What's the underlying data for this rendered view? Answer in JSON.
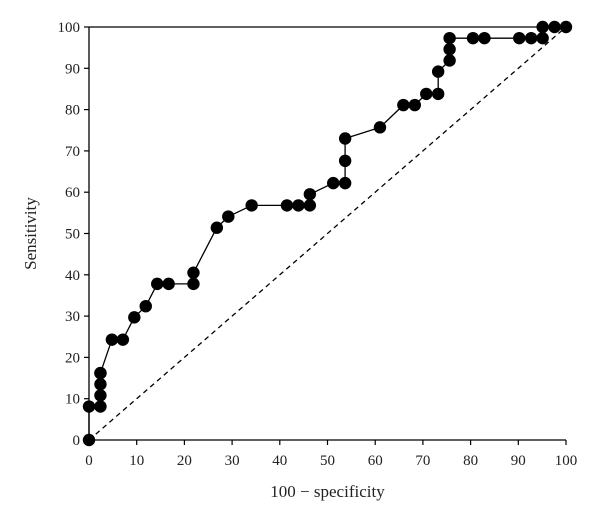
{
  "chart_data": {
    "type": "line",
    "title": "",
    "xlabel": "100 − specificity",
    "ylabel": "Sensitivity",
    "xlim": [
      0,
      100
    ],
    "ylim": [
      0,
      100
    ],
    "xticks": [
      0,
      10,
      20,
      30,
      40,
      50,
      60,
      70,
      80,
      90,
      100
    ],
    "yticks": [
      0,
      10,
      20,
      30,
      40,
      50,
      60,
      70,
      80,
      90,
      100
    ],
    "grid": false,
    "legend": "none",
    "colors": {
      "curve": "#000000",
      "marker": "#000000",
      "reference": "#000000",
      "axis": "#000000"
    },
    "series": [
      {
        "style": "solid-line-with-filled-circles",
        "x": [
          0,
          0,
          2.4,
          2.4,
          2.4,
          2.4,
          2.4,
          4.8,
          7.1,
          9.5,
          11.9,
          14.3,
          16.7,
          21.9,
          21.9,
          26.8,
          29.2,
          34.1,
          41.5,
          43.9,
          46.3,
          46.3,
          51.2,
          53.7,
          53.7,
          53.7,
          61.0,
          65.9,
          68.3,
          70.7,
          73.2,
          73.2,
          75.6,
          75.6,
          75.6,
          80.5,
          82.9,
          90.2,
          92.7,
          95.1,
          95.1,
          97.6,
          100
        ],
        "y": [
          0,
          8.1,
          8.1,
          10.8,
          13.5,
          16.2,
          16.2,
          24.3,
          24.3,
          29.7,
          32.4,
          37.8,
          37.8,
          37.8,
          40.5,
          51.4,
          54.1,
          56.8,
          56.8,
          56.8,
          56.8,
          59.5,
          62.2,
          62.2,
          67.6,
          73.0,
          75.7,
          81.1,
          81.1,
          83.8,
          83.8,
          89.2,
          91.9,
          94.6,
          97.3,
          97.3,
          97.3,
          97.3,
          97.3,
          97.3,
          100,
          100,
          100
        ]
      },
      {
        "style": "dashed-reference-line",
        "x": [
          0,
          100
        ],
        "y": [
          0,
          100
        ]
      }
    ]
  }
}
